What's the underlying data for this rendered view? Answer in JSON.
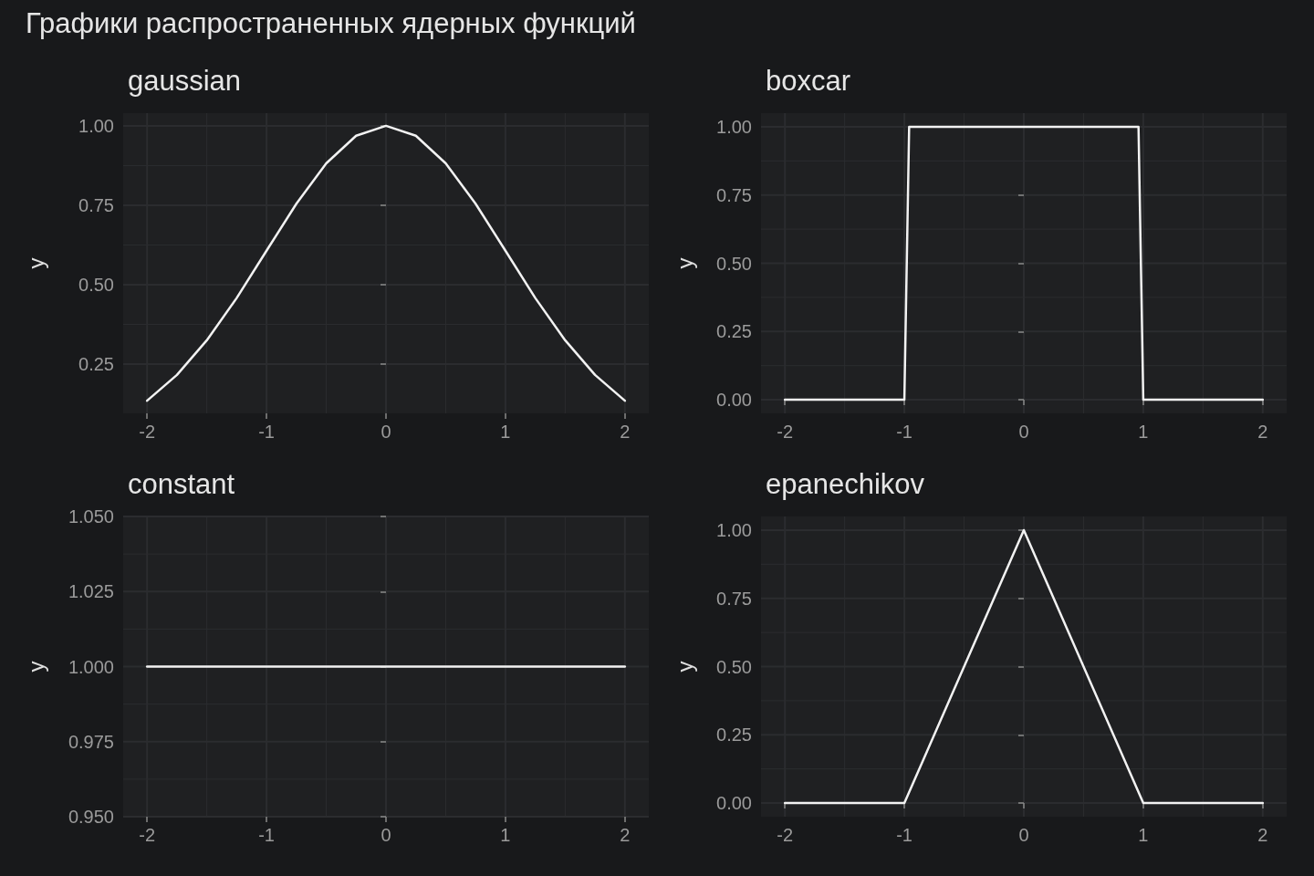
{
  "chart_data": [
    {
      "type": "other",
      "title": "Графики распространенных ядерных функций"
    },
    {
      "type": "line",
      "title": "gaussian",
      "ylabel": "y",
      "x": [
        -2,
        -1.75,
        -1.5,
        -1.25,
        -1,
        -0.75,
        -0.5,
        -0.25,
        0,
        0.25,
        0.5,
        0.75,
        1,
        1.25,
        1.5,
        1.75,
        2
      ],
      "series": [
        {
          "color": "#f2f2f2",
          "values": [
            0.135,
            0.216,
            0.325,
            0.458,
            0.607,
            0.755,
            0.882,
            0.969,
            1,
            0.969,
            0.882,
            0.755,
            0.607,
            0.458,
            0.325,
            0.216,
            0.135
          ]
        }
      ],
      "xlim": [
        -2.2,
        2.2
      ],
      "xticks": [
        -2,
        -1,
        0,
        1,
        2
      ],
      "ylim": [
        0.095,
        1.04
      ],
      "yticks": [
        {
          "value": 0.25,
          "label": "0.25"
        },
        {
          "value": 0.5,
          "label": "0.50"
        },
        {
          "value": 0.75,
          "label": "0.75"
        },
        {
          "value": 1,
          "label": "1.00"
        }
      ],
      "grid": true,
      "marker": "none",
      "line_style": "solid"
    },
    {
      "type": "line",
      "title": "boxcar",
      "ylabel": "y",
      "x": [
        -2,
        -1,
        -0.96,
        0.96,
        1,
        2
      ],
      "series": [
        {
          "color": "#f2f2f2",
          "values": [
            0,
            0,
            1,
            1,
            0,
            0
          ]
        }
      ],
      "xlim": [
        -2.2,
        2.2
      ],
      "xticks": [
        -2,
        -1,
        0,
        1,
        2
      ],
      "ylim": [
        -0.05,
        1.05
      ],
      "yticks": [
        {
          "value": 0,
          "label": "0.00"
        },
        {
          "value": 0.25,
          "label": "0.25"
        },
        {
          "value": 0.5,
          "label": "0.50"
        },
        {
          "value": 0.75,
          "label": "0.75"
        },
        {
          "value": 1,
          "label": "1.00"
        }
      ],
      "grid": true,
      "marker": "none",
      "line_style": "solid"
    },
    {
      "type": "line",
      "title": "constant",
      "ylabel": "y",
      "x": [
        -2,
        2
      ],
      "series": [
        {
          "color": "#f2f2f2",
          "values": [
            1,
            1
          ]
        }
      ],
      "xlim": [
        -2.2,
        2.2
      ],
      "xticks": [
        -2,
        -1,
        0,
        1,
        2
      ],
      "ylim": [
        0.95,
        1.05
      ],
      "yticks": [
        {
          "value": 0.95,
          "label": "0.950"
        },
        {
          "value": 0.975,
          "label": "0.975"
        },
        {
          "value": 1,
          "label": "1.000"
        },
        {
          "value": 1.025,
          "label": "1.025"
        },
        {
          "value": 1.05,
          "label": "1.050"
        }
      ],
      "grid": true,
      "marker": "none",
      "line_style": "solid"
    },
    {
      "type": "line",
      "title": "epanechikov",
      "ylabel": "y",
      "x": [
        -2,
        -1,
        0,
        1,
        2
      ],
      "series": [
        {
          "color": "#f2f2f2",
          "values": [
            0,
            0,
            1,
            0,
            0
          ]
        }
      ],
      "xlim": [
        -2.2,
        2.2
      ],
      "xticks": [
        -2,
        -1,
        0,
        1,
        2
      ],
      "ylim": [
        -0.05,
        1.05
      ],
      "yticks": [
        {
          "value": 0,
          "label": "0.00"
        },
        {
          "value": 0.25,
          "label": "0.25"
        },
        {
          "value": 0.5,
          "label": "0.50"
        },
        {
          "value": 0.75,
          "label": "0.75"
        },
        {
          "value": 1,
          "label": "1.00"
        }
      ],
      "grid": true,
      "marker": "none",
      "line_style": "solid"
    }
  ]
}
